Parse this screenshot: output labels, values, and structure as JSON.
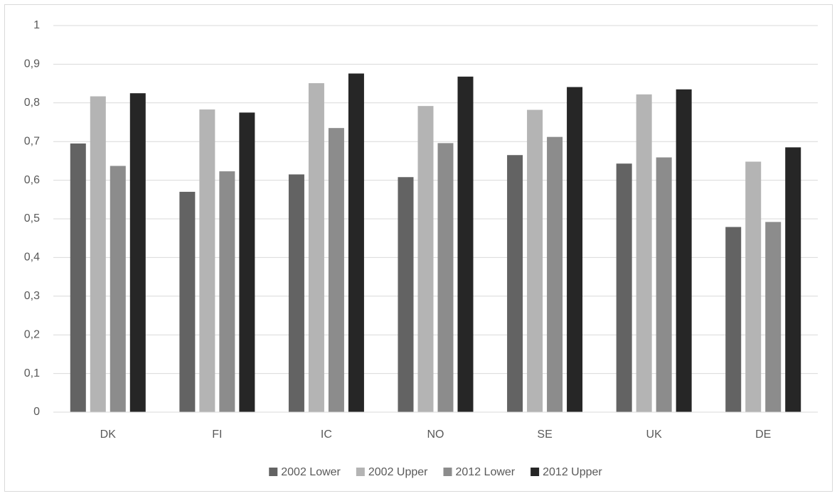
{
  "chart_data": {
    "type": "bar",
    "categories": [
      "DK",
      "FI",
      "IC",
      "NO",
      "SE",
      "UK",
      "DE"
    ],
    "series": [
      {
        "name": "2002 Lower",
        "color": "#636363",
        "values": [
          0.695,
          0.57,
          0.615,
          0.608,
          0.665,
          0.643,
          0.479
        ]
      },
      {
        "name": "2002 Upper",
        "color": "#b4b4b4",
        "values": [
          0.817,
          0.783,
          0.851,
          0.792,
          0.782,
          0.822,
          0.648
        ]
      },
      {
        "name": "2012 Lower",
        "color": "#8c8c8c",
        "values": [
          0.637,
          0.623,
          0.735,
          0.696,
          0.712,
          0.659,
          0.492
        ]
      },
      {
        "name": "2012 Upper",
        "color": "#262626",
        "values": [
          0.825,
          0.775,
          0.876,
          0.868,
          0.841,
          0.835,
          0.685
        ]
      }
    ],
    "ylim": [
      0,
      1
    ],
    "yticks": [
      0,
      {
        "value": 0.1,
        "label": "0,1"
      },
      {
        "value": 0.2,
        "label": "0,2"
      },
      {
        "value": 0.3,
        "label": "0,3"
      },
      {
        "value": 0.4,
        "label": "0,4"
      },
      {
        "value": 0.5,
        "label": "0,5"
      },
      {
        "value": 0.6,
        "label": "0,6"
      },
      {
        "value": 0.7,
        "label": "0,7"
      },
      {
        "value": 0.8,
        "label": "0,8"
      },
      {
        "value": 0.9,
        "label": "0,9"
      },
      1
    ],
    "grid": true,
    "legend": "bottom"
  }
}
